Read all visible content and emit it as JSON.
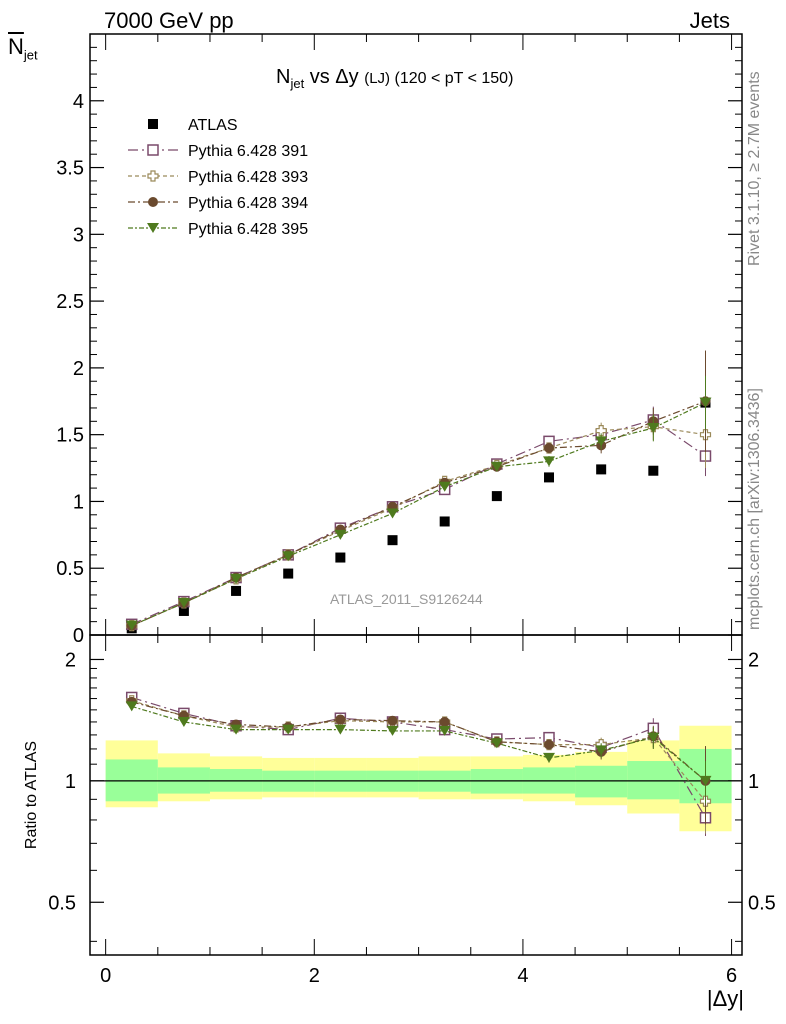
{
  "header": {
    "left": "7000 GeV pp",
    "right": "Jets"
  },
  "side_labels": {
    "version": "Rivet 3.1.10, ≥ 2.7M events",
    "url": "mcplots.cern.ch [arXiv:1306.3436]"
  },
  "watermark": "ATLAS_2011_S9126244",
  "axis_labels": {
    "x": "|Δy|",
    "y_top": "N̅jet",
    "y_bottom": "Ratio to ATLAS"
  },
  "colors": {
    "atlas": "#000000",
    "p391": "#7a4a6b",
    "p393": "#9b8a5a",
    "p394": "#6b4a2e",
    "p395": "#4f7a1e",
    "band_inner": "#99ff99",
    "band_outer": "#ffff99"
  },
  "chart_data": [
    {
      "type": "scatter",
      "title": "N_jet vs Δy (LJ) (120 < pT < 150)",
      "title_parts": {
        "main": "N",
        "sub": "jet",
        "rest": " vs Δy ",
        "small": "(LJ)",
        "tail": " (120 < pT < 150)"
      },
      "xlim": [
        -0.15,
        6.1
      ],
      "ylim": [
        0,
        4.5
      ],
      "y_ticks": [
        "0",
        "0.5",
        "1",
        "1.5",
        "2",
        "2.5",
        "3",
        "3.5",
        "4"
      ],
      "x": [
        0.25,
        0.75,
        1.25,
        1.75,
        2.25,
        2.75,
        3.25,
        3.75,
        4.25,
        4.75,
        5.25,
        5.75
      ],
      "series": [
        {
          "name": "ATLAS",
          "marker": "square-filled",
          "values": [
            0.05,
            0.18,
            0.33,
            0.46,
            0.58,
            0.71,
            0.85,
            1.04,
            1.18,
            1.24,
            1.23,
            1.74
          ]
        },
        {
          "name": "Pythia 6.428 391",
          "marker": "square-open",
          "values": [
            0.08,
            0.25,
            0.43,
            0.6,
            0.8,
            0.96,
            1.09,
            1.28,
            1.45,
            1.5,
            1.61,
            1.34
          ],
          "errors": [
            0.01,
            0.01,
            0.01,
            0.01,
            0.02,
            0.02,
            0.03,
            0.03,
            0.04,
            0.06,
            0.1,
            0.15
          ]
        },
        {
          "name": "Pythia 6.428 393",
          "marker": "cross-open",
          "values": [
            0.07,
            0.24,
            0.42,
            0.6,
            0.78,
            0.95,
            1.15,
            1.27,
            1.4,
            1.53,
            1.56,
            1.5
          ],
          "errors": [
            0.01,
            0.01,
            0.01,
            0.01,
            0.02,
            0.02,
            0.03,
            0.03,
            0.04,
            0.06,
            0.1,
            0.25
          ]
        },
        {
          "name": "Pythia 6.428 394",
          "marker": "circle-filled",
          "values": [
            0.07,
            0.24,
            0.43,
            0.6,
            0.79,
            0.96,
            1.14,
            1.26,
            1.4,
            1.42,
            1.6,
            1.75
          ],
          "errors": [
            0.01,
            0.01,
            0.01,
            0.01,
            0.02,
            0.02,
            0.03,
            0.03,
            0.04,
            0.06,
            0.1,
            0.38
          ]
        },
        {
          "name": "Pythia 6.428 395",
          "marker": "triangle-down-filled",
          "values": [
            0.07,
            0.24,
            0.42,
            0.59,
            0.75,
            0.91,
            1.11,
            1.26,
            1.3,
            1.45,
            1.55,
            1.74
          ],
          "errors": [
            0.01,
            0.01,
            0.01,
            0.01,
            0.02,
            0.02,
            0.03,
            0.03,
            0.04,
            0.06,
            0.1,
            0.2
          ]
        }
      ]
    },
    {
      "type": "scatter",
      "title": "",
      "ylabel": "Ratio to ATLAS",
      "xlabel": "|Δy|",
      "y_scale": "log",
      "ylim": [
        0.37,
        2.3
      ],
      "y_ticks": [
        "0.5",
        "1",
        "2"
      ],
      "x_ticks": [
        "0",
        "2",
        "4",
        "6"
      ],
      "xlim": [
        -0.15,
        6.1
      ],
      "bands": {
        "edges": [
          0,
          0.5,
          1,
          1.5,
          2,
          2.5,
          3,
          3.5,
          4,
          4.5,
          5,
          5.5,
          6
        ],
        "inner": [
          [
            0.89,
            1.13
          ],
          [
            0.93,
            1.08
          ],
          [
            0.94,
            1.07
          ],
          [
            0.94,
            1.06
          ],
          [
            0.94,
            1.06
          ],
          [
            0.94,
            1.06
          ],
          [
            0.94,
            1.06
          ],
          [
            0.93,
            1.07
          ],
          [
            0.93,
            1.08
          ],
          [
            0.91,
            1.09
          ],
          [
            0.9,
            1.12
          ],
          [
            0.88,
            1.2
          ]
        ],
        "outer": [
          [
            0.86,
            1.26
          ],
          [
            0.89,
            1.17
          ],
          [
            0.9,
            1.15
          ],
          [
            0.91,
            1.14
          ],
          [
            0.91,
            1.14
          ],
          [
            0.91,
            1.14
          ],
          [
            0.9,
            1.15
          ],
          [
            0.9,
            1.15
          ],
          [
            0.89,
            1.16
          ],
          [
            0.87,
            1.18
          ],
          [
            0.83,
            1.26
          ],
          [
            0.75,
            1.37
          ]
        ]
      },
      "x": [
        0.25,
        0.75,
        1.25,
        1.75,
        2.25,
        2.75,
        3.25,
        3.75,
        4.25,
        4.75,
        5.25,
        5.75
      ],
      "series": [
        {
          "name": "Pythia 6.428 391",
          "marker": "square-open",
          "values": [
            1.61,
            1.47,
            1.37,
            1.34,
            1.43,
            1.4,
            1.34,
            1.27,
            1.28,
            1.21,
            1.35,
            0.81
          ],
          "errors": [
            0.02,
            0.02,
            0.02,
            0.02,
            0.02,
            0.02,
            0.02,
            0.03,
            0.03,
            0.05,
            0.08,
            0.08
          ]
        },
        {
          "name": "Pythia 6.428 393",
          "marker": "cross-open",
          "values": [
            1.58,
            1.45,
            1.36,
            1.36,
            1.41,
            1.4,
            1.4,
            1.25,
            1.23,
            1.23,
            1.28,
            0.89
          ],
          "errors": [
            0.02,
            0.02,
            0.02,
            0.02,
            0.02,
            0.02,
            0.02,
            0.03,
            0.03,
            0.05,
            0.08,
            0.15
          ]
        },
        {
          "name": "Pythia 6.428 394",
          "marker": "circle-filled",
          "values": [
            1.57,
            1.45,
            1.38,
            1.36,
            1.42,
            1.41,
            1.4,
            1.25,
            1.23,
            1.18,
            1.29,
            1.0
          ],
          "errors": [
            0.02,
            0.02,
            0.02,
            0.02,
            0.02,
            0.02,
            0.02,
            0.03,
            0.03,
            0.05,
            0.08,
            0.22
          ]
        },
        {
          "name": "Pythia 6.428 395",
          "marker": "triangle-down-filled",
          "values": [
            1.53,
            1.4,
            1.34,
            1.34,
            1.34,
            1.33,
            1.33,
            1.24,
            1.14,
            1.19,
            1.28,
            1.0
          ],
          "errors": [
            0.02,
            0.02,
            0.02,
            0.02,
            0.02,
            0.02,
            0.02,
            0.03,
            0.03,
            0.05,
            0.08,
            0.12
          ]
        }
      ]
    }
  ]
}
